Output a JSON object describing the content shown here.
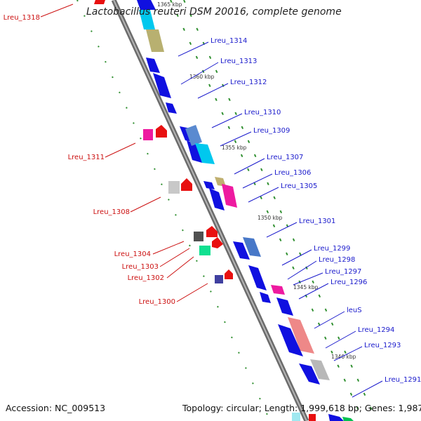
{
  "title": "Lactobacillus reuteri DSM 20016, complete genome",
  "footer": {
    "accession": "Accession: NC_009513",
    "topology": "Topology: circular; Length: 1,999,618 bp; Genes: 1,987"
  },
  "colors": {
    "backbone": "#8a8a8a",
    "tick_dash": "#2f8f2f",
    "right_label": "#1a1acc",
    "left_label": "#cc1111"
  },
  "scale_labels": [
    "1365 kbp",
    "1360 kbp",
    "1355 kbp",
    "1350 kbp",
    "1345 kbp",
    "1340 kbp"
  ],
  "right_labels": [
    "Lreu_1314",
    "Lreu_1313",
    "Lreu_1312",
    "Lreu_1310",
    "Lreu_1309",
    "Lreu_1307",
    "Lreu_1306",
    "Lreu_1305",
    "Lreu_1301",
    "Lreu_1299",
    "Lreu_1298",
    "Lreu_1297",
    "Lreu_1296",
    "leuS",
    "Lreu_1294",
    "Lreu_1293",
    "Lreu_1291"
  ],
  "left_labels": [
    "Lreu_1318",
    "Lreu_1311",
    "Lreu_1308",
    "Lreu_1304",
    "Lreu_1303",
    "Lreu_1302",
    "Lreu_1300"
  ]
}
